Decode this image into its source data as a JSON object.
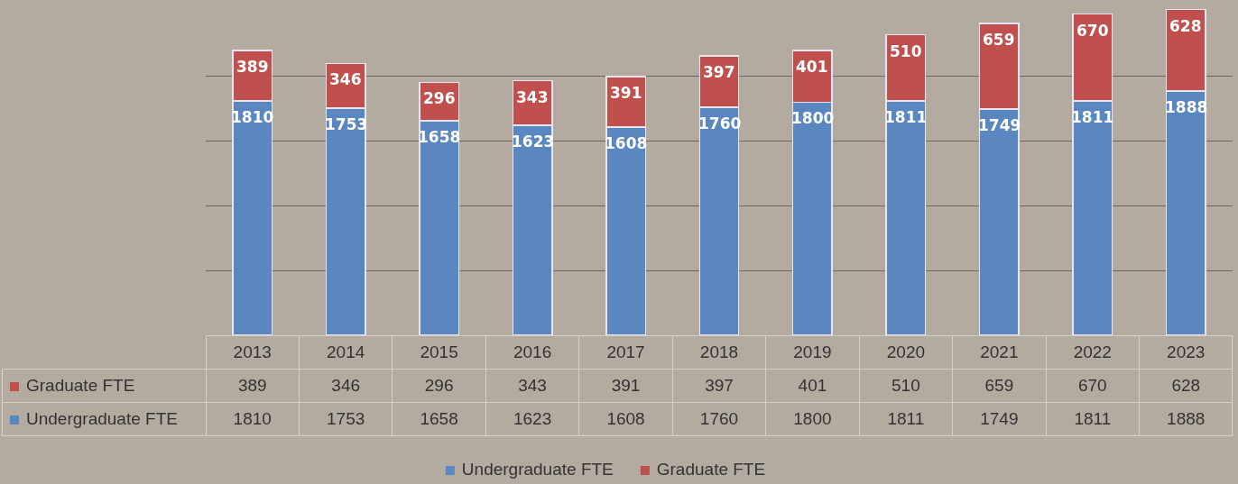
{
  "chart_data": {
    "type": "bar",
    "stacked": true,
    "categories": [
      "2013",
      "2014",
      "2015",
      "2016",
      "2017",
      "2018",
      "2019",
      "2020",
      "2021",
      "2022",
      "2023"
    ],
    "series": [
      {
        "name": "Undergraduate FTE",
        "color": "#5b87c0",
        "values": [
          1810,
          1753,
          1658,
          1623,
          1608,
          1760,
          1800,
          1811,
          1749,
          1811,
          1888
        ]
      },
      {
        "name": "Graduate FTE",
        "color": "#c0504d",
        "values": [
          389,
          346,
          296,
          343,
          391,
          397,
          401,
          510,
          659,
          670,
          628
        ]
      }
    ],
    "ylim": [
      0,
      2520
    ],
    "yticks": [
      {
        "value": 500,
        "label": null
      },
      {
        "value": 1000,
        "label": null
      },
      {
        "value": 1500,
        "label": null
      },
      {
        "value": 2000,
        "label": null
      }
    ],
    "annotations": [
      {
        "text": "1810",
        "x": "2013",
        "y": 1810
      },
      {
        "text": "1753",
        "x": "2014",
        "y": 1753
      },
      {
        "text": "1658",
        "x": "2015",
        "y": 1658
      },
      {
        "text": "1623",
        "x": "2016",
        "y": 1623
      },
      {
        "text": "1608",
        "x": "2017",
        "y": 1608
      },
      {
        "text": "1760",
        "x": "2018",
        "y": 1760
      },
      {
        "text": "1800",
        "x": "2019",
        "y": 1800
      },
      {
        "text": "1811",
        "x": "2020",
        "y": 1811
      },
      {
        "text": "1749",
        "x": "2021",
        "y": 1749
      },
      {
        "text": "1811",
        "x": "2022",
        "y": 1811
      },
      {
        "text": "1888",
        "x": "2023",
        "y": 1888
      },
      {
        "text": "389",
        "x": "2013",
        "y": 2199
      },
      {
        "text": "346",
        "x": "2014",
        "y": 2099
      },
      {
        "text": "296",
        "x": "2015",
        "y": 1954
      },
      {
        "text": "343",
        "x": "2016",
        "y": 1966
      },
      {
        "text": "391",
        "x": "2017",
        "y": 1999
      },
      {
        "text": "397",
        "x": "2018",
        "y": 2157
      },
      {
        "text": "401",
        "x": "2019",
        "y": 2201
      },
      {
        "text": "510",
        "x": "2020",
        "y": 2321
      },
      {
        "text": "659",
        "x": "2021",
        "y": 2408
      },
      {
        "text": "670",
        "x": "2022",
        "y": 2481
      },
      {
        "text": "628",
        "x": "2023",
        "y": 2516
      }
    ],
    "grid": "y",
    "data_labels": true,
    "legend": "bottom",
    "tick_labels": "x"
  }
}
